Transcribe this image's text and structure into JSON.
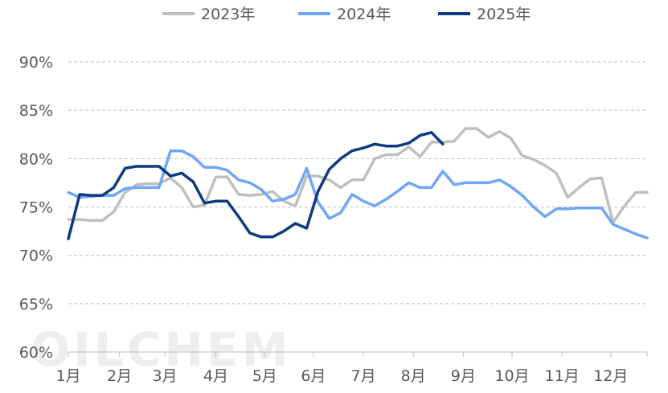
{
  "chart_data": {
    "type": "line",
    "watermark": "OILCHEM",
    "y_axis": {
      "min": 60,
      "max": 90,
      "ticks": [
        {
          "value": 90,
          "label": "90%"
        },
        {
          "value": 85,
          "label": "85%"
        },
        {
          "value": 80,
          "label": "80%"
        },
        {
          "value": 75,
          "label": "75%"
        },
        {
          "value": 70,
          "label": "70%"
        },
        {
          "value": 65,
          "label": "65%"
        },
        {
          "value": 60,
          "label": "60%"
        }
      ],
      "gridlines": true
    },
    "x_axis": {
      "min_week": 1,
      "max_week": 52,
      "months": [
        {
          "label": "1月",
          "week": 1
        },
        {
          "label": "2月",
          "week": 5.5
        },
        {
          "label": "3月",
          "week": 9.5
        },
        {
          "label": "4月",
          "week": 14
        },
        {
          "label": "5月",
          "week": 18.3
        },
        {
          "label": "6月",
          "week": 22.6
        },
        {
          "label": "7月",
          "week": 27
        },
        {
          "label": "8月",
          "week": 31.4
        },
        {
          "label": "9月",
          "week": 35.8
        },
        {
          "label": "10月",
          "week": 40.1
        },
        {
          "label": "11月",
          "week": 44.5
        },
        {
          "label": "12月",
          "week": 48.8
        }
      ]
    },
    "legend_position": "top-center",
    "series": [
      {
        "name": "2023年",
        "color": "#BFBFBF",
        "points": [
          [
            1,
            73.7
          ],
          [
            2,
            73.7
          ],
          [
            3,
            73.6
          ],
          [
            4,
            73.6
          ],
          [
            5,
            74.5
          ],
          [
            6,
            76.5
          ],
          [
            7,
            77.3
          ],
          [
            8,
            77.4
          ],
          [
            9,
            77.4
          ],
          [
            10,
            78
          ],
          [
            11,
            77
          ],
          [
            12,
            75
          ],
          [
            13,
            75.2
          ],
          [
            14,
            78.1
          ],
          [
            15,
            78.1
          ],
          [
            16,
            76.3
          ],
          [
            17,
            76.2
          ],
          [
            18,
            76.3
          ],
          [
            19,
            76.6
          ],
          [
            20,
            75.6
          ],
          [
            21,
            75.1
          ],
          [
            22,
            78.2
          ],
          [
            23,
            78.2
          ],
          [
            24,
            77.8
          ],
          [
            25,
            77
          ],
          [
            26,
            77.8
          ],
          [
            27,
            77.8
          ],
          [
            28,
            80
          ],
          [
            29,
            80.4
          ],
          [
            30,
            80.4
          ],
          [
            31,
            81.2
          ],
          [
            32,
            80.2
          ],
          [
            33,
            81.7
          ],
          [
            34,
            81.7
          ],
          [
            35,
            81.8
          ],
          [
            36,
            83.1
          ],
          [
            37,
            83.1
          ],
          [
            38,
            82.2
          ],
          [
            39,
            82.8
          ],
          [
            40,
            82.1
          ],
          [
            41,
            80.3
          ],
          [
            42,
            79.9
          ],
          [
            43,
            79.3
          ],
          [
            44,
            78.5
          ],
          [
            45,
            76
          ],
          [
            46,
            77
          ],
          [
            47,
            77.9
          ],
          [
            48,
            78
          ],
          [
            49,
            73.4
          ],
          [
            50,
            75.1
          ],
          [
            51,
            76.5
          ],
          [
            52,
            76.5
          ]
        ]
      },
      {
        "name": "2024年",
        "color": "#6EA6F8",
        "points": [
          [
            1,
            76.5
          ],
          [
            2,
            76
          ],
          [
            3,
            76.1
          ],
          [
            4,
            76.2
          ],
          [
            5,
            76.2
          ],
          [
            6,
            76.9
          ],
          [
            7,
            77
          ],
          [
            8,
            77
          ],
          [
            9,
            77
          ],
          [
            10,
            80.8
          ],
          [
            11,
            80.8
          ],
          [
            12,
            80.2
          ],
          [
            13,
            79.1
          ],
          [
            14,
            79.1
          ],
          [
            15,
            78.8
          ],
          [
            16,
            77.8
          ],
          [
            17,
            77.5
          ],
          [
            18,
            76.8
          ],
          [
            19,
            75.6
          ],
          [
            20,
            75.8
          ],
          [
            21,
            76.3
          ],
          [
            22,
            79
          ],
          [
            23,
            75.5
          ],
          [
            24,
            73.8
          ],
          [
            25,
            74.4
          ],
          [
            26,
            76.3
          ],
          [
            27,
            75.6
          ],
          [
            28,
            75.1
          ],
          [
            29,
            75.8
          ],
          [
            30,
            76.6
          ],
          [
            31,
            77.5
          ],
          [
            32,
            77
          ],
          [
            33,
            77
          ],
          [
            34,
            78.7
          ],
          [
            35,
            77.3
          ],
          [
            36,
            77.5
          ],
          [
            37,
            77.5
          ],
          [
            38,
            77.5
          ],
          [
            39,
            77.8
          ],
          [
            40,
            77.1
          ],
          [
            41,
            76.2
          ],
          [
            42,
            75
          ],
          [
            43,
            74
          ],
          [
            44,
            74.8
          ],
          [
            45,
            74.8
          ],
          [
            46,
            74.9
          ],
          [
            47,
            74.9
          ],
          [
            48,
            74.9
          ],
          [
            49,
            73.2
          ],
          [
            50,
            72.7
          ],
          [
            51,
            72.2
          ],
          [
            52,
            71.8
          ]
        ]
      },
      {
        "name": "2025年",
        "color": "#0E3B82",
        "points": [
          [
            1,
            71.7
          ],
          [
            2,
            76.3
          ],
          [
            3,
            76.2
          ],
          [
            4,
            76.2
          ],
          [
            5,
            77
          ],
          [
            6,
            79
          ],
          [
            7,
            79.2
          ],
          [
            8,
            79.2
          ],
          [
            9,
            79.2
          ],
          [
            10,
            78.2
          ],
          [
            11,
            78.5
          ],
          [
            12,
            77.6
          ],
          [
            13,
            75.4
          ],
          [
            14,
            75.6
          ],
          [
            15,
            75.6
          ],
          [
            16,
            74
          ],
          [
            17,
            72.3
          ],
          [
            18,
            71.9
          ],
          [
            19,
            71.9
          ],
          [
            20,
            72.5
          ],
          [
            21,
            73.3
          ],
          [
            22,
            72.8
          ],
          [
            23,
            76.6
          ],
          [
            24,
            78.9
          ],
          [
            25,
            80
          ],
          [
            26,
            80.8
          ],
          [
            27,
            81.1
          ],
          [
            28,
            81.5
          ],
          [
            29,
            81.3
          ],
          [
            30,
            81.3
          ],
          [
            31,
            81.6
          ],
          [
            32,
            82.4
          ],
          [
            33,
            82.7
          ],
          [
            34,
            81.5
          ]
        ]
      }
    ]
  }
}
